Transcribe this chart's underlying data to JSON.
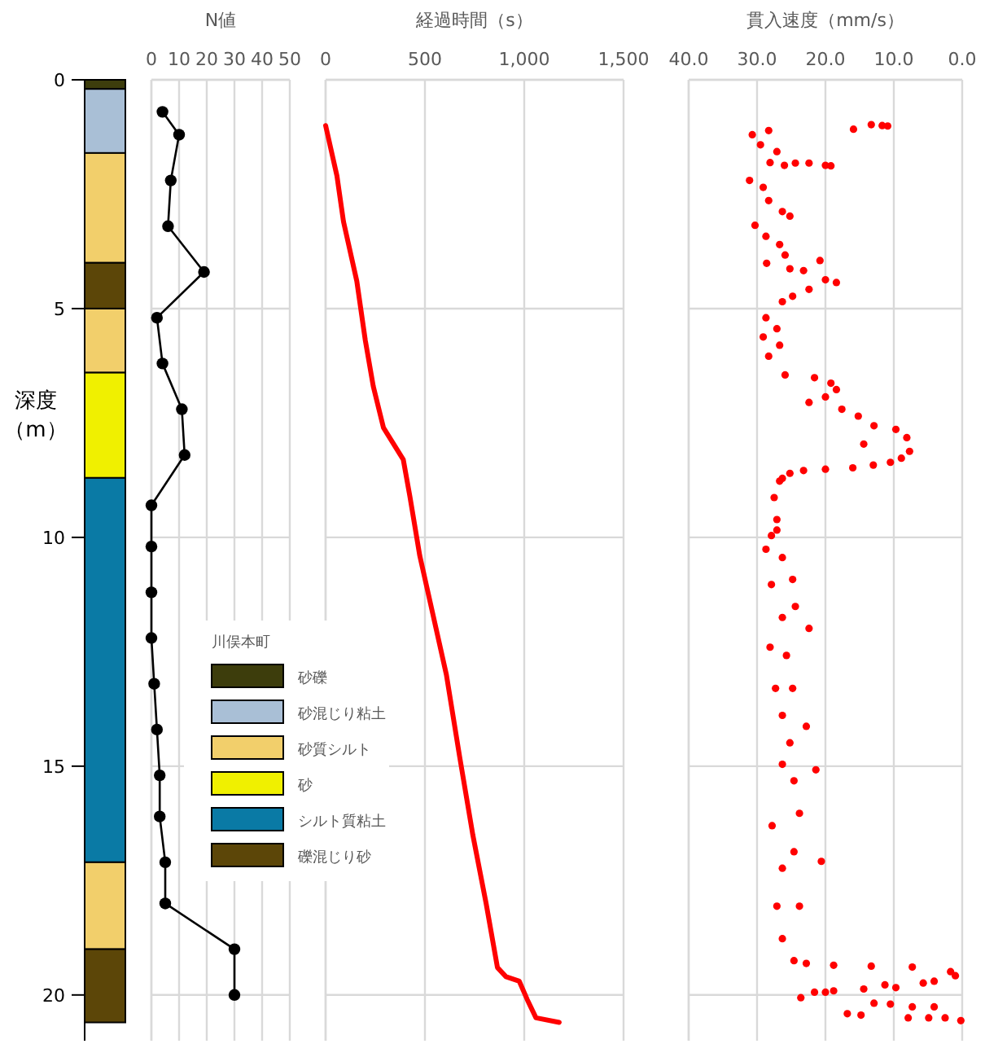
{
  "chart_data": [
    {
      "type": "bar",
      "stacked": true,
      "categories": [
        null
      ],
      "ylabel": "深度（m）",
      "ylim": [
        21,
        0
      ],
      "yticks": [
        0,
        5,
        10,
        15,
        20
      ],
      "tick_labels": "y",
      "legend": "right",
      "legend_title": "川俣本町",
      "series": [
        {
          "name": "砂礫",
          "color": "#3d3d0c",
          "values": [
            0.2
          ]
        },
        {
          "name": "砂混じり粘土",
          "color": "#a9bfd6",
          "values": [
            1.4
          ]
        },
        {
          "name": "砂質シルト",
          "color": "#f2cf6b",
          "values": [
            2.4
          ]
        },
        {
          "color": "#5c4608",
          "values": [
            1.0
          ]
        },
        {
          "color": "#f2cf6b",
          "values": [
            1.4
          ]
        },
        {
          "name": "砂",
          "color": "#f0f000",
          "values": [
            2.3
          ]
        },
        {
          "name": "シルト質粘土",
          "color": "#0a7aa5",
          "values": [
            8.4
          ]
        },
        {
          "color": "#f2cf6b",
          "values": [
            1.9
          ]
        },
        {
          "name": "礫混じり砂",
          "color": "#5c4608",
          "values": [
            1.6
          ]
        }
      ]
    },
    {
      "type": "line",
      "xlabel": "N値",
      "xlim": [
        0,
        50
      ],
      "xticks": [
        0,
        10,
        20,
        30,
        40,
        50
      ],
      "ylim": [
        21,
        0
      ],
      "yticks": [
        0,
        5,
        10,
        15,
        20
      ],
      "tick_labels": "x",
      "grid": true,
      "marker": "circle",
      "series": [
        {
          "color": "#000000",
          "x": [
            4,
            10,
            7,
            6,
            19,
            2,
            4,
            11,
            12,
            0,
            0,
            0,
            0,
            1,
            2,
            3,
            3,
            5,
            5,
            30,
            30
          ],
          "values": [
            0.7,
            1.2,
            2.2,
            3.2,
            4.2,
            5.2,
            6.2,
            7.2,
            8.2,
            9.3,
            10.2,
            11.2,
            12.2,
            13.2,
            14.2,
            15.2,
            16.1,
            17.1,
            18.0,
            19.0,
            20.0
          ]
        }
      ]
    },
    {
      "type": "line",
      "xlabel": "経過時間（s）",
      "xlim": [
        0,
        1500
      ],
      "xticks": [
        0,
        500,
        {
          "value": 1000,
          "label": "1,000"
        },
        {
          "value": 1500,
          "label": "1,500"
        }
      ],
      "ylim": [
        21,
        0
      ],
      "yticks": [
        0,
        5,
        10,
        15,
        20
      ],
      "tick_labels": "x",
      "grid": true,
      "series": [
        {
          "color": "#ff0000",
          "x": [
            0,
            57,
            90,
            157,
            200,
            240,
            291,
            391,
            424,
            474,
            541,
            608,
            675,
            741,
            808,
            865,
            908,
            975,
            1015,
            1059,
            1176
          ],
          "values": [
            1.0,
            2.1,
            3.1,
            4.4,
            5.7,
            6.7,
            7.6,
            8.3,
            9.1,
            10.4,
            11.7,
            13.0,
            14.8,
            16.5,
            18.0,
            19.4,
            19.6,
            19.7,
            20.1,
            20.5,
            20.6
          ]
        }
      ]
    },
    {
      "type": "scatter",
      "xlabel": "貫入速度（mm/s）",
      "xlim": [
        40,
        0
      ],
      "xticks": [
        {
          "value": 40,
          "label": "40.0"
        },
        {
          "value": 30,
          "label": "30.0"
        },
        {
          "value": 20,
          "label": "20.0"
        },
        {
          "value": 10,
          "label": "10.0"
        },
        {
          "value": 0,
          "label": "0.0"
        }
      ],
      "ylim": [
        21,
        0
      ],
      "yticks": [
        0,
        5,
        10,
        15,
        20
      ],
      "tick_labels": "x",
      "grid": true,
      "series": [
        {
          "color": "#ff0000",
          "x": [
            10.9,
            11.7,
            13.3,
            15.9,
            30.7,
            28.3,
            29.5,
            27.1,
            28.1,
            26.0,
            24.4,
            22.4,
            20.0,
            19.2,
            31.1,
            29.1,
            28.3,
            26.3,
            25.2,
            30.3,
            28.7,
            26.7,
            25.9,
            28.6,
            25.2,
            23.2,
            20.8,
            20.0,
            18.4,
            22.4,
            24.8,
            26.3,
            28.7,
            27.1,
            29.1,
            26.7,
            28.3,
            25.9,
            21.6,
            19.2,
            18.4,
            20.0,
            22.4,
            17.6,
            15.2,
            12.9,
            9.7,
            8.1,
            7.7,
            8.9,
            10.5,
            13.0,
            16.0,
            20.0,
            23.2,
            25.2,
            26.3,
            26.7,
            27.5,
            27.1,
            27.9,
            14.4,
            27.1,
            28.7,
            26.3,
            27.9,
            24.8,
            24.4,
            26.3,
            22.4,
            28.1,
            25.7,
            27.3,
            24.8,
            26.3,
            22.8,
            25.2,
            26.3,
            21.4,
            24.6,
            23.8,
            27.8,
            20.6,
            26.3,
            24.6,
            27.1,
            23.8,
            26.3,
            24.6,
            22.8,
            18.8,
            13.3,
            7.3,
            1.7,
            1.0,
            4.1,
            11.3,
            9.7,
            5.7,
            23.6,
            21.6,
            20.0,
            18.8,
            14.4,
            16.8,
            14.8,
            12.9,
            10.5,
            7.3,
            4.1,
            7.9,
            4.9,
            2.5,
            0.2
          ],
          "values": [
            1.01,
            1.0,
            0.98,
            1.08,
            1.2,
            1.11,
            1.42,
            1.57,
            1.81,
            1.87,
            1.82,
            1.82,
            1.87,
            1.88,
            2.2,
            2.35,
            2.64,
            2.88,
            2.98,
            3.18,
            3.42,
            3.6,
            3.83,
            4.01,
            4.13,
            4.17,
            3.95,
            4.37,
            4.43,
            4.58,
            4.73,
            4.85,
            5.2,
            5.44,
            5.62,
            5.8,
            6.04,
            6.45,
            6.51,
            6.63,
            6.77,
            6.93,
            7.05,
            7.2,
            7.35,
            7.56,
            7.64,
            7.82,
            8.12,
            8.27,
            8.36,
            8.42,
            8.48,
            8.51,
            8.54,
            8.6,
            8.71,
            8.77,
            9.13,
            9.61,
            9.96,
            7.96,
            9.84,
            10.26,
            10.44,
            11.03,
            10.92,
            11.51,
            11.75,
            11.99,
            12.4,
            12.58,
            13.3,
            13.3,
            13.89,
            14.13,
            14.49,
            14.96,
            15.08,
            15.32,
            16.03,
            16.3,
            17.08,
            17.23,
            16.87,
            18.06,
            18.06,
            18.77,
            19.25,
            19.31,
            19.35,
            19.37,
            19.39,
            19.49,
            19.58,
            19.7,
            19.78,
            19.84,
            19.74,
            20.06,
            19.94,
            19.94,
            19.91,
            19.87,
            20.41,
            20.44,
            20.18,
            20.2,
            20.26,
            20.26,
            20.5,
            20.5,
            20.5,
            20.56
          ]
        }
      ]
    }
  ]
}
